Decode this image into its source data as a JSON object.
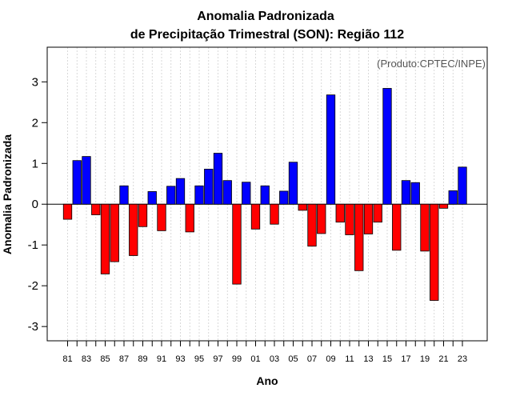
{
  "chart_data": {
    "type": "bar",
    "title": [
      "Anomalia Padronizada",
      "de Precipitação Trimestral (SON): Região 112"
    ],
    "xlabel": "Ano",
    "ylabel": "Anomalia Padronizada",
    "credit": "(Produto:CPTEC/INPE)",
    "ylim": [
      -3.35,
      3.85
    ],
    "yticks": [
      -3,
      -2,
      -1,
      0,
      1,
      2,
      3
    ],
    "years": [
      1981,
      1982,
      1983,
      1984,
      1985,
      1986,
      1987,
      1988,
      1989,
      1990,
      1991,
      1992,
      1993,
      1994,
      1995,
      1996,
      1997,
      1998,
      1999,
      2000,
      2001,
      2002,
      2003,
      2004,
      2005,
      2006,
      2007,
      2008,
      2009,
      2010,
      2011,
      2012,
      2013,
      2014,
      2015,
      2016,
      2017,
      2018,
      2019,
      2020,
      2021,
      2022,
      2023
    ],
    "xtick_labels": [
      "81",
      "83",
      "85",
      "87",
      "89",
      "91",
      "93",
      "95",
      "97",
      "99",
      "01",
      "03",
      "05",
      "07",
      "09",
      "11",
      "13",
      "15",
      "17",
      "19",
      "21",
      "23"
    ],
    "values": [
      -0.37,
      1.07,
      1.17,
      -0.26,
      -1.71,
      -1.41,
      0.45,
      -1.26,
      -0.55,
      0.31,
      -0.65,
      0.44,
      0.63,
      -0.68,
      0.45,
      0.86,
      1.25,
      0.58,
      -1.96,
      0.54,
      -0.61,
      0.45,
      -0.49,
      0.32,
      1.03,
      -0.15,
      -1.03,
      -0.72,
      2.68,
      -0.44,
      -0.75,
      -1.63,
      -0.73,
      -0.44,
      2.84,
      -1.13,
      0.58,
      0.53,
      -1.15,
      -2.36,
      -0.1,
      0.33,
      0.91
    ],
    "colors": {
      "positive": "#0000ff",
      "negative": "#ff0000"
    }
  }
}
